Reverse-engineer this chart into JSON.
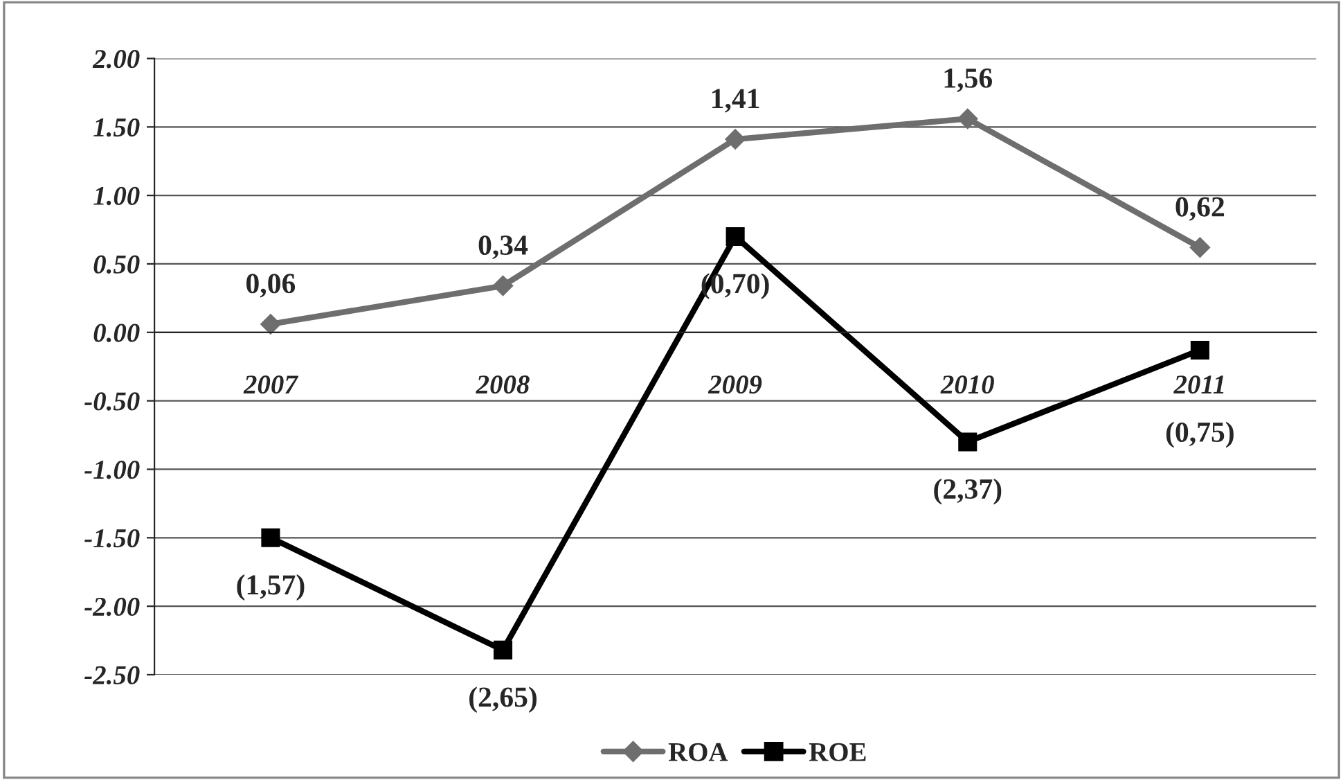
{
  "chart_data": {
    "type": "line",
    "categories": [
      "2007",
      "2008",
      "2009",
      "2010",
      "2011"
    ],
    "series": [
      {
        "name": "ROA",
        "color": "#6e6e6e",
        "marker": "diamond",
        "values": [
          0.06,
          0.34,
          1.41,
          1.56,
          0.62
        ],
        "value_labels": [
          "0,06",
          "0,34",
          "1,41",
          "1,56",
          "0,62"
        ]
      },
      {
        "name": "ROE",
        "color": "#000000",
        "marker": "square",
        "values": [
          -1.5,
          -2.32,
          0.7,
          -0.8,
          -0.13
        ]
      }
    ],
    "annotations": [
      {
        "text": "(1,57)",
        "x": "2007",
        "y": -1.5
      },
      {
        "text": "(2,65)",
        "x": "2008",
        "y": -2.32
      },
      {
        "text": "(0,70)",
        "x": "2009",
        "y": 0.7
      },
      {
        "text": "(2,37)",
        "x": "2010",
        "y": -0.8
      },
      {
        "text": "(0,75)",
        "x": "2011",
        "y": -0.13
      }
    ],
    "ylim": [
      -2.5,
      2.0
    ],
    "yticks": [
      {
        "value": -2.5,
        "label": "-2.50"
      },
      {
        "value": -2.0,
        "label": "-2.00"
      },
      {
        "value": -1.5,
        "label": "-1.50"
      },
      {
        "value": -1.0,
        "label": "-1.00"
      },
      {
        "value": -0.5,
        "label": "-0.50"
      },
      {
        "value": 0.0,
        "label": "0.00"
      },
      {
        "value": 0.5,
        "label": "0.50"
      },
      {
        "value": 1.0,
        "label": "1.00"
      },
      {
        "value": 1.5,
        "label": "1.50"
      },
      {
        "value": 2.0,
        "label": "2.00"
      }
    ],
    "grid": "y",
    "legend": "bottom"
  }
}
